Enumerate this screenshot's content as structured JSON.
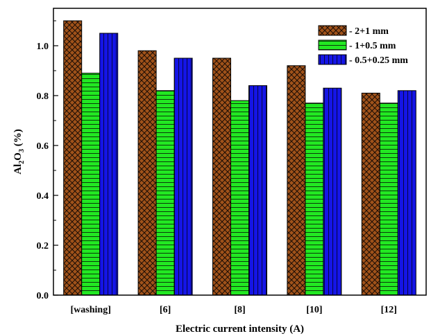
{
  "chart_data": {
    "type": "bar",
    "xlabel": "Electric current intensity (A)",
    "ylabel": {
      "parts": [
        "Al",
        "2",
        "O",
        "3",
        " (%)"
      ]
    },
    "categories": [
      "[washing]",
      "[6]",
      "[8]",
      "[10]",
      "[12]"
    ],
    "ylim": [
      0,
      1.15
    ],
    "yticks": [
      "0.0",
      "0.2",
      "0.4",
      "0.6",
      "0.8",
      "1.0"
    ],
    "grid": false,
    "legend_position": "top-right",
    "series": [
      {
        "name": "- 2+1 mm",
        "values": [
          1.1,
          0.98,
          0.95,
          0.92,
          0.81
        ],
        "color": "#a0521a",
        "pattern": "crosshatch"
      },
      {
        "name": "- 1+0.5 mm",
        "values": [
          0.89,
          0.82,
          0.78,
          0.77,
          0.77
        ],
        "color": "#22e822",
        "pattern": "horizontal-lines"
      },
      {
        "name": "- 0.5+0.25 mm",
        "values": [
          1.05,
          0.95,
          0.84,
          0.83,
          0.82
        ],
        "color": "#1515e6",
        "pattern": "vertical-lines"
      }
    ]
  }
}
